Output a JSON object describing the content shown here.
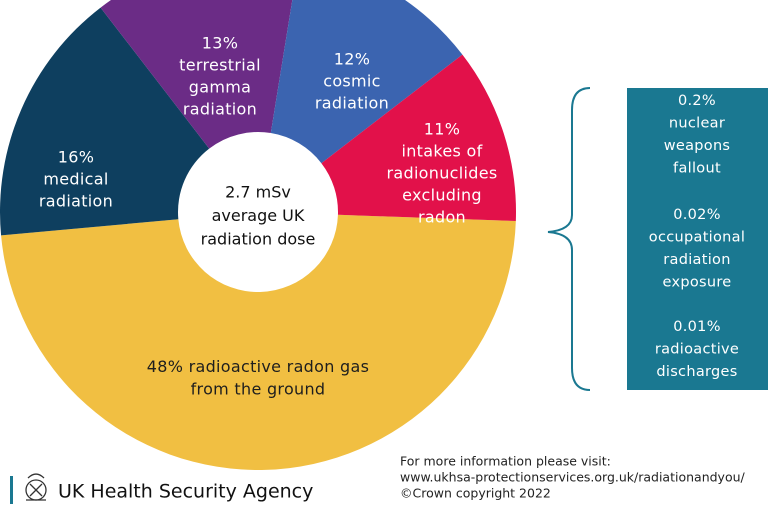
{
  "chart_data": {
    "type": "donut",
    "center_label": [
      "2.7 mSv",
      "average UK",
      "radiation dose"
    ],
    "categories": [
      [
        "radioactive radon gas",
        "from the ground"
      ],
      [
        "medical",
        "radiation"
      ],
      [
        "terrestrial",
        "gamma",
        "radiation"
      ],
      [
        "cosmic",
        "radiation"
      ],
      [
        "intakes of",
        "radionuclides",
        "excluding",
        "radon"
      ]
    ],
    "values": [
      48,
      16,
      13,
      12,
      11
    ],
    "value_labels": [
      "48%",
      "16%",
      "13%",
      "12%",
      "11%"
    ],
    "colors": [
      "#f1bf42",
      "#0e3f5f",
      "#6b2c86",
      "#3b64b0",
      "#e2114a"
    ],
    "side_box": {
      "color": "#1a7891",
      "items": [
        {
          "percent": "0.2%",
          "lines": [
            "nuclear",
            "weapons",
            "fallout"
          ]
        },
        {
          "percent": "0.02%",
          "lines": [
            "occupational",
            "radiation",
            "exposure"
          ]
        },
        {
          "percent": "0.01%",
          "lines": [
            "radioactive",
            "discharges"
          ]
        }
      ]
    }
  },
  "footer": {
    "agency": "UK Health Security Agency",
    "info": [
      "For more information please visit:",
      "www.ukhsa-protectionservices.org.uk/radiationandyou/",
      "©Crown copyright 2022"
    ]
  }
}
